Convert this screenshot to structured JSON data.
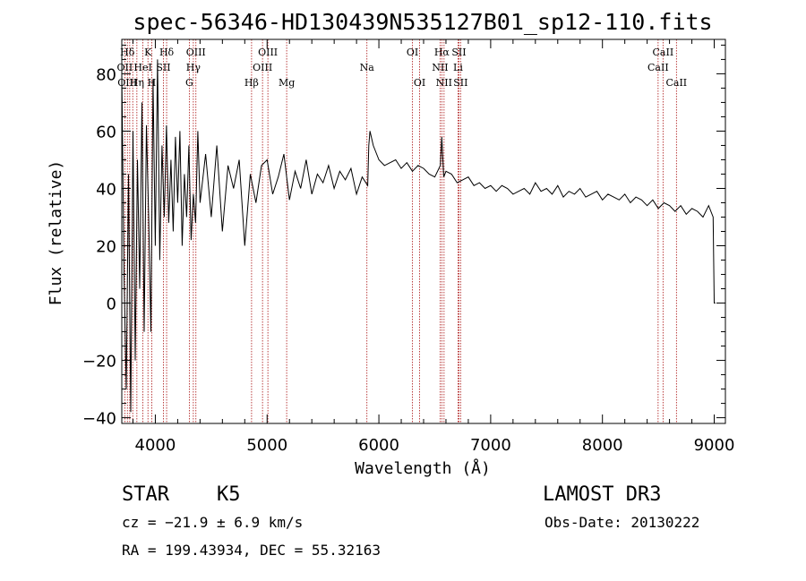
{
  "chart_data": {
    "type": "line",
    "title": "spec-56346-HD130439N535127B01_sp12-110.fits",
    "xlabel": "Wavelength (Å)",
    "ylabel": "Flux (relative)",
    "xlim": [
      3700,
      9100
    ],
    "ylim": [
      -42,
      92
    ],
    "xticks": [
      4000,
      5000,
      6000,
      7000,
      8000,
      9000
    ],
    "yticks": [
      -40,
      -20,
      0,
      20,
      40,
      60,
      80
    ],
    "series": [
      {
        "name": "flux",
        "x": [
          3700,
          3720,
          3740,
          3760,
          3780,
          3800,
          3820,
          3840,
          3860,
          3880,
          3900,
          3920,
          3940,
          3960,
          3980,
          4000,
          4020,
          4040,
          4060,
          4080,
          4100,
          4120,
          4140,
          4160,
          4180,
          4200,
          4220,
          4240,
          4260,
          4280,
          4300,
          4320,
          4340,
          4360,
          4380,
          4400,
          4450,
          4500,
          4550,
          4600,
          4650,
          4700,
          4750,
          4800,
          4850,
          4900,
          4950,
          5000,
          5050,
          5100,
          5150,
          5200,
          5250,
          5300,
          5350,
          5400,
          5450,
          5500,
          5550,
          5600,
          5650,
          5700,
          5750,
          5800,
          5850,
          5900,
          5910,
          5920,
          5950,
          6000,
          6050,
          6100,
          6150,
          6200,
          6250,
          6300,
          6350,
          6400,
          6450,
          6500,
          6550,
          6563,
          6580,
          6600,
          6650,
          6700,
          6750,
          6800,
          6850,
          6900,
          6950,
          7000,
          7050,
          7100,
          7150,
          7200,
          7250,
          7300,
          7350,
          7400,
          7450,
          7500,
          7550,
          7600,
          7650,
          7700,
          7750,
          7800,
          7850,
          7900,
          7950,
          8000,
          8050,
          8100,
          8150,
          8200,
          8250,
          8300,
          8350,
          8400,
          8450,
          8500,
          8550,
          8600,
          8650,
          8700,
          8750,
          8800,
          8850,
          8900,
          8950,
          8990,
          9000,
          9010
        ],
        "y": [
          80,
          10,
          -30,
          45,
          -38,
          60,
          -20,
          50,
          5,
          70,
          -10,
          62,
          30,
          -10,
          78,
          20,
          85,
          15,
          55,
          30,
          62,
          28,
          50,
          25,
          58,
          35,
          60,
          20,
          45,
          30,
          55,
          22,
          38,
          28,
          60,
          35,
          52,
          30,
          55,
          25,
          48,
          40,
          50,
          20,
          45,
          35,
          48,
          50,
          38,
          44,
          52,
          36,
          46,
          40,
          50,
          38,
          45,
          42,
          48,
          40,
          46,
          43,
          47,
          38,
          44,
          41,
          55,
          60,
          55,
          50,
          48,
          49,
          50,
          47,
          49,
          46,
          48,
          47,
          45,
          44,
          48,
          58,
          44,
          46,
          45,
          42,
          43,
          44,
          41,
          42,
          40,
          41,
          39,
          41,
          40,
          38,
          39,
          40,
          38,
          42,
          39,
          40,
          38,
          41,
          37,
          39,
          38,
          40,
          37,
          38,
          39,
          36,
          38,
          37,
          36,
          38,
          35,
          37,
          36,
          34,
          36,
          33,
          35,
          34,
          32,
          34,
          31,
          33,
          32,
          30,
          34,
          30,
          0,
          0
        ]
      }
    ],
    "line_labels": [
      {
        "label": "Hδ",
        "wavelength": 3750,
        "row": 0
      },
      {
        "label": "K",
        "wavelength": 3934,
        "row": 0
      },
      {
        "label": "Hδ",
        "wavelength": 4101,
        "row": 0
      },
      {
        "label": "OIII",
        "wavelength": 4363,
        "row": 0
      },
      {
        "label": "OIII",
        "wavelength": 5007,
        "row": 0
      },
      {
        "label": "OI",
        "wavelength": 6300,
        "row": 0
      },
      {
        "label": "Hα",
        "wavelength": 6563,
        "row": 0
      },
      {
        "label": "SII",
        "wavelength": 6716,
        "row": 0
      },
      {
        "label": "CaII",
        "wavelength": 8542,
        "row": 0
      },
      {
        "label": "OII",
        "wavelength": 3727,
        "row": 1
      },
      {
        "label": "HeI",
        "wavelength": 3889,
        "row": 1
      },
      {
        "label": "SII",
        "wavelength": 4072,
        "row": 1
      },
      {
        "label": "Hγ",
        "wavelength": 4340,
        "row": 1
      },
      {
        "label": "OIII",
        "wavelength": 4959,
        "row": 1
      },
      {
        "label": "Na",
        "wavelength": 5893,
        "row": 1
      },
      {
        "label": "NII",
        "wavelength": 6548,
        "row": 1
      },
      {
        "label": "Li",
        "wavelength": 6708,
        "row": 1
      },
      {
        "label": "CaII",
        "wavelength": 8498,
        "row": 1
      },
      {
        "label": "OIII",
        "wavelength": 3750,
        "row": 2
      },
      {
        "label": "Hη",
        "wavelength": 3835,
        "row": 2
      },
      {
        "label": "H",
        "wavelength": 3968,
        "row": 2
      },
      {
        "label": "G",
        "wavelength": 4304,
        "row": 2
      },
      {
        "label": "Hβ",
        "wavelength": 4861,
        "row": 2
      },
      {
        "label": "Mg",
        "wavelength": 5175,
        "row": 2
      },
      {
        "label": "OI",
        "wavelength": 6364,
        "row": 2
      },
      {
        "label": "NII",
        "wavelength": 6583,
        "row": 2
      },
      {
        "label": "SII",
        "wavelength": 6731,
        "row": 2
      },
      {
        "label": "CaII",
        "wavelength": 8662,
        "row": 2
      }
    ],
    "marker_wavelengths": [
      3727,
      3750,
      3771,
      3798,
      3835,
      3889,
      3934,
      3968,
      4072,
      4101,
      4304,
      4340,
      4363,
      4861,
      4959,
      5007,
      5175,
      5893,
      6300,
      6364,
      6548,
      6563,
      6583,
      6708,
      6716,
      6731,
      8498,
      8542,
      8662
    ]
  },
  "info": {
    "object_class": "STAR",
    "subclass": "K5",
    "survey": "LAMOST DR3",
    "redshift_line": "cz = −21.9 ± 6.9 km/s",
    "obs_date": "Obs-Date: 20130222",
    "coords": "RA = 199.43934, DEC =  55.32163"
  },
  "colors": {
    "marker": "#aa1111",
    "spectrum": "#000000"
  }
}
